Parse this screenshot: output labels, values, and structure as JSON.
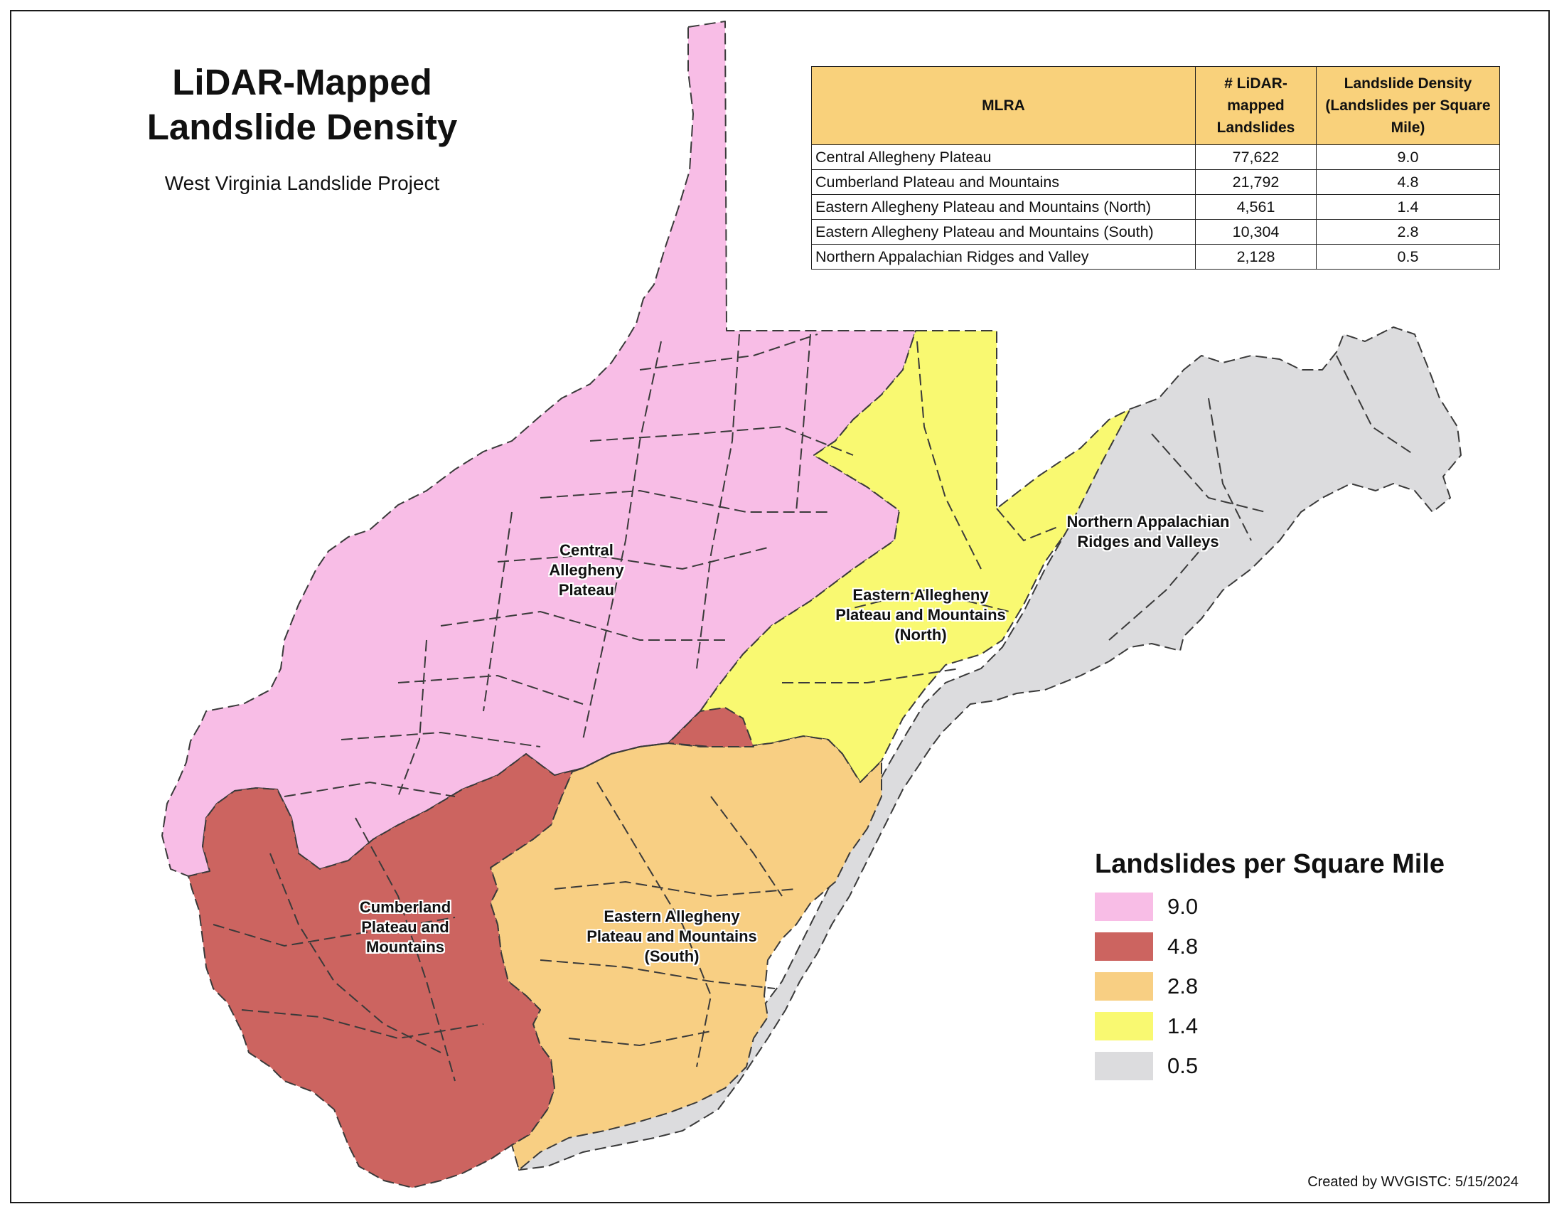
{
  "title": {
    "line1": "LiDAR-Mapped",
    "line2": "Landslide Density",
    "subtitle": "West Virginia Landslide Project"
  },
  "table": {
    "headers": [
      "MLRA",
      "# LiDAR-mapped Landslides",
      "Landslide Density (Landslides per Square Mile)"
    ],
    "rows": [
      {
        "mlra": "Central Allegheny Plateau",
        "count": "77,622",
        "density": "9.0"
      },
      {
        "mlra": "Cumberland Plateau and Mountains",
        "count": "21,792",
        "density": "4.8"
      },
      {
        "mlra": "Eastern Allegheny Plateau and Mountains (North)",
        "count": "4,561",
        "density": "1.4"
      },
      {
        "mlra": "Eastern Allegheny Plateau and Mountains (South)",
        "count": "10,304",
        "density": "2.8"
      },
      {
        "mlra": "Northern Appalachian Ridges and Valley",
        "count": "2,128",
        "density": "0.5"
      }
    ]
  },
  "regions": {
    "central": {
      "label": "Central Allegheny Plateau",
      "color": "#f8bde6"
    },
    "cumberland": {
      "label": "Cumberland Plateau and Mountains",
      "color": "#cc6460"
    },
    "east_north": {
      "label": "Eastern Allegheny Plateau and Mountains (North)",
      "color": "#f9f971"
    },
    "east_south": {
      "label": "Eastern Allegheny Plateau and Mountains (South)",
      "color": "#f8cf83"
    },
    "ridges": {
      "label": "Northern Appalachian Ridges and Valleys",
      "color": "#dcdcde"
    }
  },
  "legend": {
    "title": "Landslides per Square Mile",
    "items": [
      {
        "label": "9.0",
        "color": "#f8bde6"
      },
      {
        "label": "4.8",
        "color": "#cc6460"
      },
      {
        "label": "2.8",
        "color": "#f8cf83"
      },
      {
        "label": "1.4",
        "color": "#f9f971"
      },
      {
        "label": "0.5",
        "color": "#dcdcde"
      }
    ]
  },
  "credit": "Created by WVGISTC: 5/15/2024"
}
